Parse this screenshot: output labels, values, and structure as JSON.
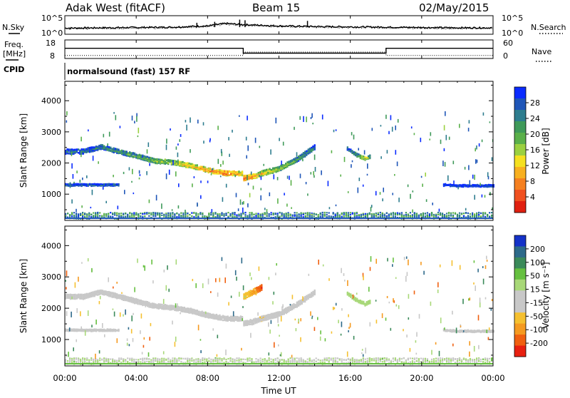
{
  "header": {
    "station": "Adak West (fitACF)",
    "beam": "Beam 15",
    "date": "02/May/2015"
  },
  "top_panels": {
    "nsky_label": "N.Sky",
    "nsearch_label": "N.Search",
    "noise_ticks_left": [
      "10^5",
      "10^0"
    ],
    "noise_ticks_right": [
      "10^5",
      "10^0"
    ],
    "freq_label": "Freq.",
    "freq_unit": "[MHz]",
    "freq_ticks": [
      "18",
      "8"
    ],
    "nave_label": "Nave",
    "nave_ticks": [
      "60",
      "0"
    ],
    "cpid_label": "CPID",
    "cpid_text": "normalsound (fast) 157 RF"
  },
  "chart_data": [
    {
      "type": "line",
      "name": "noise",
      "series": [
        {
          "name": "N.Sky",
          "x": [
            0,
            2,
            4,
            6,
            8,
            9,
            10,
            12,
            14,
            16,
            18,
            20,
            22,
            24
          ],
          "values": [
            1.5,
            1.6,
            1.7,
            1.8,
            2.2,
            3.0,
            2.6,
            2.2,
            2.0,
            1.9,
            1.8,
            1.7,
            1.6,
            1.6
          ]
        },
        {
          "name": "N.Search",
          "x": [
            0,
            2,
            4,
            6,
            8,
            9,
            10,
            12,
            14,
            16,
            18,
            20,
            22,
            24
          ],
          "values": [
            1.3,
            1.4,
            1.5,
            1.6,
            2.0,
            2.7,
            2.4,
            2.0,
            1.8,
            1.7,
            1.6,
            1.5,
            1.4,
            1.4
          ]
        }
      ],
      "xlim": [
        0,
        24
      ]
    },
    {
      "type": "line",
      "name": "frequency-nave",
      "series": [
        {
          "name": "Freq.",
          "x": [
            0,
            10,
            10,
            18,
            18,
            24
          ],
          "values": [
            13.6,
            13.6,
            10.5,
            10.5,
            13.6,
            13.6
          ]
        },
        {
          "name": "Nave",
          "x": [
            0,
            10,
            10,
            18,
            18,
            24
          ],
          "values": [
            17,
            17,
            30,
            30,
            17,
            17
          ]
        }
      ],
      "ylim_freq": [
        8,
        18
      ],
      "ylim_nave": [
        0,
        60
      ],
      "xlim": [
        0,
        24
      ]
    },
    {
      "type": "heatmap",
      "name": "power",
      "ylabel": "Slant Range [km]",
      "yticks": [
        "4000",
        "3000",
        "2000",
        "1000"
      ],
      "ylim": [
        180,
        4600
      ],
      "xlim": [
        0,
        24
      ],
      "colorbar_label": "Power [dB]",
      "colorbar_ticks": [
        "28",
        "24",
        "20",
        "16",
        "12",
        "8",
        "4"
      ],
      "colorbar_colors": [
        "#0a2bff",
        "#1f56b8",
        "#2e7d8f",
        "#3f9a5a",
        "#5ab04a",
        "#9bd040",
        "#f5e020",
        "#f8b020",
        "#f58020",
        "#f05020",
        "#e02010"
      ],
      "bands": [
        {
          "x": [
            0,
            1,
            2,
            3,
            4,
            5,
            6,
            7,
            8,
            9,
            9.9
          ],
          "range": [
            2350,
            2350,
            2500,
            2350,
            2200,
            2050,
            2000,
            1900,
            1750,
            1650,
            1650
          ],
          "width": 130,
          "power": [
            6,
            8,
            8,
            10,
            12,
            14,
            16,
            20,
            22,
            24,
            20
          ]
        },
        {
          "x": [
            10,
            10.5,
            11,
            12,
            13,
            14
          ],
          "range": [
            1500,
            1550,
            1650,
            1800,
            2100,
            2500
          ],
          "width": 140,
          "power": [
            26,
            24,
            20,
            16,
            12,
            8
          ]
        },
        {
          "x": [
            0,
            1,
            2,
            3
          ],
          "range": [
            1280,
            1280,
            1280,
            1280
          ],
          "width": 50,
          "power": [
            6,
            6,
            6,
            6
          ]
        },
        {
          "x": [
            21.2,
            22,
            23,
            24
          ],
          "range": [
            1280,
            1250,
            1250,
            1250
          ],
          "width": 50,
          "power": [
            4,
            4,
            4,
            4
          ]
        },
        {
          "x": [
            15.8,
            16.3,
            16.8,
            17.1
          ],
          "range": [
            2450,
            2250,
            2120,
            2200
          ],
          "width": 90,
          "power": [
            6,
            10,
            18,
            10
          ]
        }
      ],
      "ground_band": {
        "range": [
          200,
          400
        ],
        "power": 8
      }
    },
    {
      "type": "heatmap",
      "name": "velocity",
      "ylabel": "Slant Range [km]",
      "yticks": [
        "4000",
        "3000",
        "2000",
        "1000"
      ],
      "ylim": [
        180,
        4600
      ],
      "xlim": [
        0,
        24
      ],
      "colorbar_label": "Velocity [m s⁻¹]",
      "colorbar_ticks": [
        "200",
        "100",
        "50",
        "15",
        "-15",
        "-50",
        "-100",
        "-200"
      ],
      "colorbar_colors": [
        "#1432c8",
        "#2d6a8a",
        "#3b8a5a",
        "#66c040",
        "#a8d878",
        "#c8c8c8",
        "#c8c8c8",
        "#f5c030",
        "#f59a20",
        "#f06010",
        "#e82010"
      ],
      "bands": [
        {
          "x": [
            0,
            1,
            2,
            3,
            4,
            5,
            6,
            7,
            8,
            9,
            9.9
          ],
          "range": [
            2350,
            2350,
            2500,
            2350,
            2200,
            2050,
            2000,
            1900,
            1750,
            1650,
            1650
          ],
          "width": 130,
          "velocity": [
            0,
            0,
            0,
            0,
            0,
            0,
            0,
            0,
            0,
            0,
            0
          ]
        },
        {
          "x": [
            10,
            10.5,
            11,
            12,
            13,
            14
          ],
          "range": [
            1500,
            1550,
            1650,
            1800,
            2100,
            2500
          ],
          "width": 140,
          "velocity": [
            -20,
            -40,
            -60,
            -40,
            -20,
            0
          ]
        },
        {
          "x": [
            10,
            10.5,
            11
          ],
          "range": [
            2350,
            2500,
            2650
          ],
          "width": 160,
          "velocity": [
            -80,
            -120,
            -200
          ]
        },
        {
          "x": [
            0,
            1,
            2,
            3
          ],
          "range": [
            1280,
            1280,
            1280,
            1280
          ],
          "width": 50,
          "velocity": [
            0,
            0,
            0,
            0
          ]
        },
        {
          "x": [
            21.2,
            22,
            23,
            24
          ],
          "range": [
            1280,
            1250,
            1250,
            1250
          ],
          "width": 50,
          "velocity": [
            0,
            0,
            0,
            0
          ]
        },
        {
          "x": [
            15.8,
            16.3,
            16.8,
            17.1
          ],
          "range": [
            2450,
            2250,
            2120,
            2200
          ],
          "width": 90,
          "velocity": [
            40,
            40,
            40,
            40
          ]
        }
      ],
      "ground_band": {
        "range": [
          200,
          400
        ],
        "velocity": 10
      }
    }
  ],
  "xaxis": {
    "ticks": [
      "00:00",
      "04:00",
      "08:00",
      "12:00",
      "16:00",
      "20:00",
      "00:00"
    ],
    "tick_hours": [
      0,
      4,
      8,
      12,
      16,
      20,
      24
    ],
    "label": "Time UT"
  }
}
